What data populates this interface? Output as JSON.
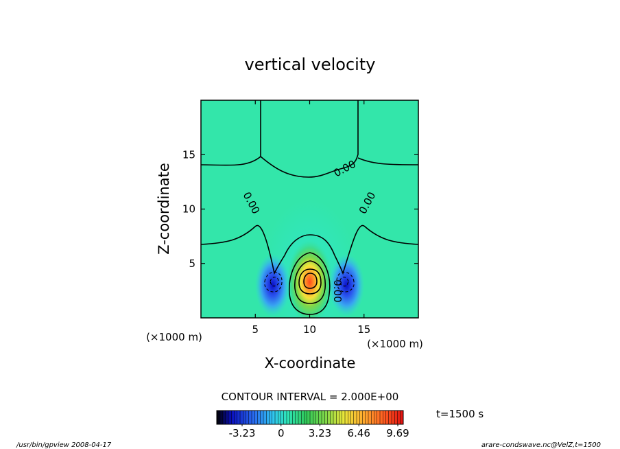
{
  "chart_data": {
    "type": "heatmap",
    "title": "vertical velocity",
    "xlabel": "X-coordinate",
    "ylabel": "Z-coordinate",
    "x_unit": "(×1000 m)",
    "y_unit": "(×1000 m)",
    "xlim": [
      0,
      20
    ],
    "ylim": [
      0,
      20
    ],
    "x_ticks": [
      5,
      10,
      15
    ],
    "y_ticks": [
      5,
      10,
      15
    ],
    "contour_interval_text": "CONTOUR INTERVAL = 2.000E+00",
    "contour_labels": [
      "0.00",
      "0.00",
      "0.00",
      "0.00"
    ],
    "colorbar": {
      "range": [
        -3.23,
        9.69
      ],
      "ticks": [
        "-3.23",
        "0",
        "3.23",
        "6.46",
        "9.69"
      ]
    },
    "field": {
      "updraft_center": [
        10,
        3.3
      ],
      "updraft_peak": 9.69,
      "downdraft_centers": [
        [
          6.6,
          3
        ],
        [
          13.4,
          3
        ]
      ],
      "downdraft_min": -3.23
    },
    "time_label": "t=1500 s"
  },
  "footer": {
    "left": "/usr/bin/gpview   2008-04-17",
    "right": "arare-condswave.nc@VelZ,t=1500"
  }
}
